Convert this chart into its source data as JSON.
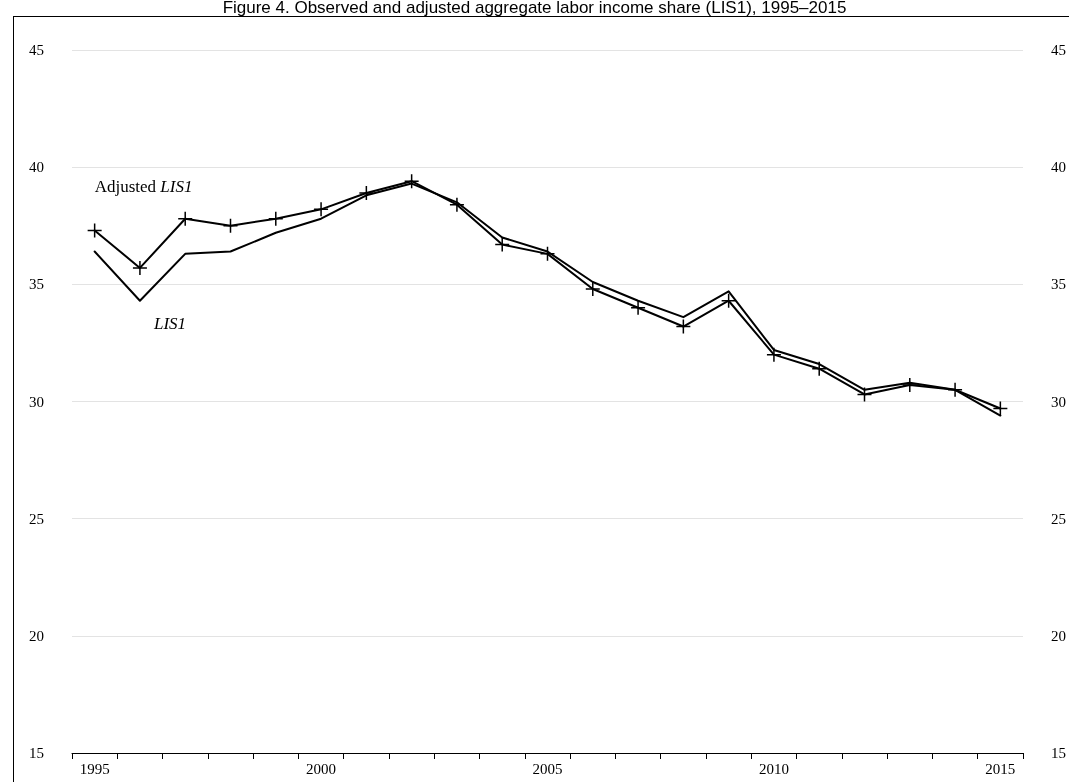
{
  "chart_data": {
    "type": "line",
    "title": "Figure 4. Observed and adjusted aggregate labor income share (LIS1), 1995–2015",
    "categories": [
      "1995",
      null,
      null,
      null,
      null,
      "2000",
      null,
      null,
      null,
      null,
      "2005",
      null,
      null,
      null,
      null,
      "2010",
      null,
      null,
      null,
      null,
      "2015"
    ],
    "series": [
      {
        "name": "Adjusted LIS1",
        "color": "#000000",
        "marker": "cross",
        "values": [
          37.3,
          35.7,
          37.8,
          37.5,
          37.8,
          38.2,
          38.9,
          39.4,
          38.4,
          36.7,
          36.3,
          34.8,
          34.0,
          33.2,
          34.3,
          32.0,
          31.4,
          30.3,
          30.7,
          30.5,
          29.7
        ]
      },
      {
        "name": "LIS1",
        "color": "#000000",
        "values": [
          36.4,
          34.3,
          36.3,
          36.4,
          37.2,
          37.8,
          38.8,
          39.3,
          38.5,
          37.0,
          36.4,
          35.1,
          34.3,
          33.6,
          34.7,
          32.2,
          31.6,
          30.5,
          30.8,
          30.5,
          29.4
        ]
      }
    ],
    "ylim": [
      15,
      45
    ],
    "yticks": [
      15,
      20,
      25,
      30,
      35,
      40,
      45
    ],
    "y2lim": [
      15,
      45
    ],
    "y2ticks": [
      15,
      20,
      25,
      30,
      35,
      40,
      45
    ],
    "grid": "y",
    "line_style": "solid"
  }
}
